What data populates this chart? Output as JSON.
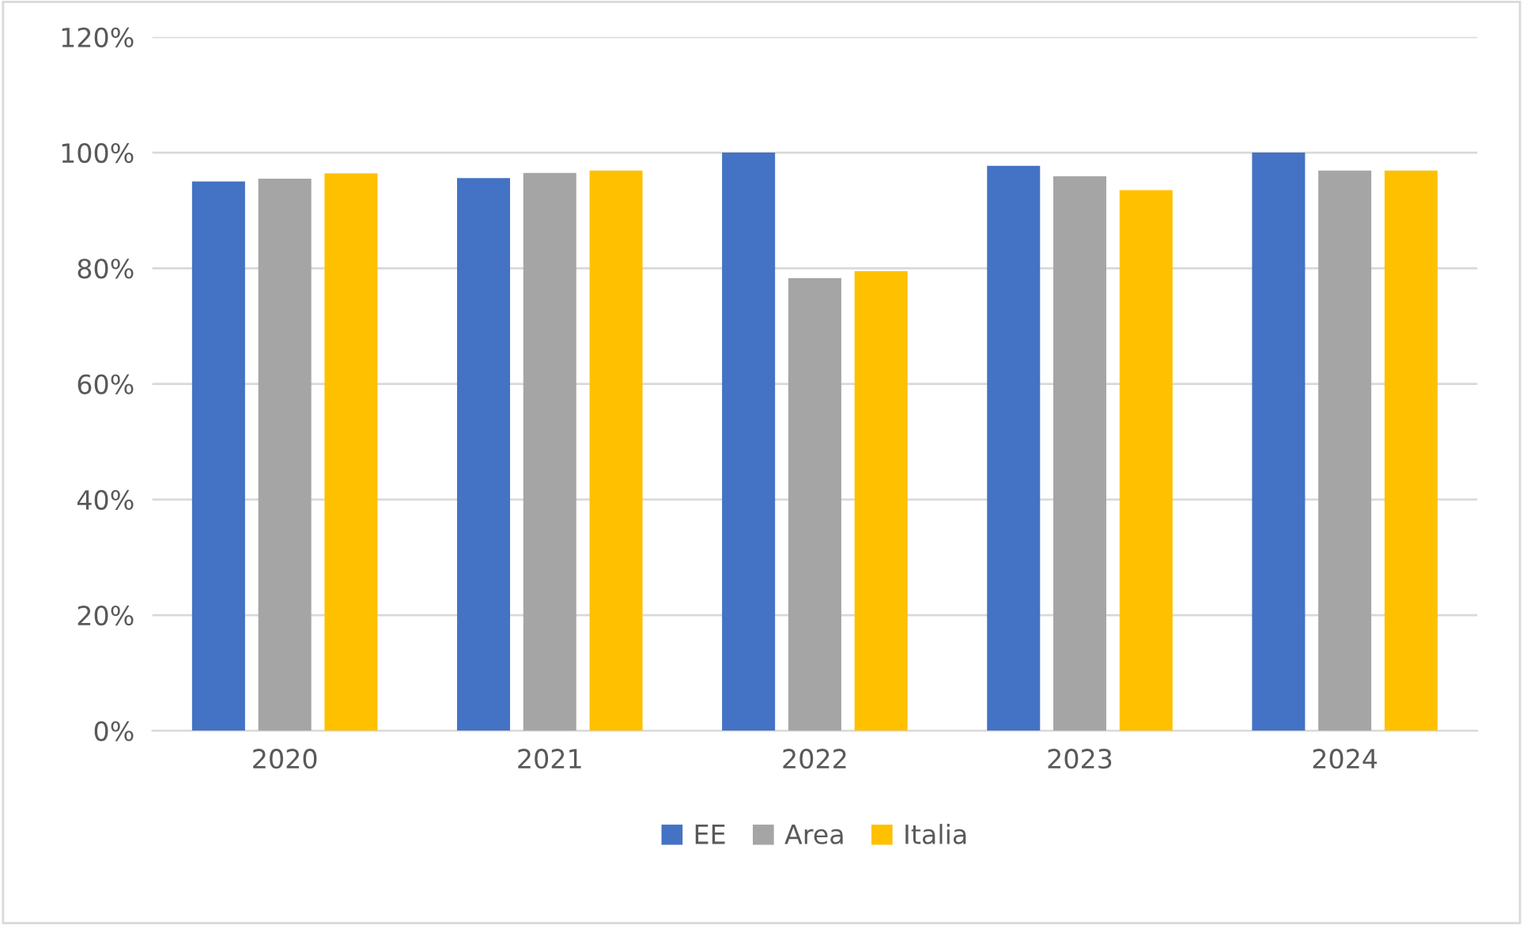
{
  "chart_data": {
    "type": "bar",
    "categories": [
      "2020",
      "2021",
      "2022",
      "2023",
      "2024"
    ],
    "series": [
      {
        "name": "EE",
        "color": "#4472c4",
        "values": [
          95,
          95.6,
          100,
          97.7,
          100
        ]
      },
      {
        "name": "Area",
        "color": "#a5a5a5",
        "values": [
          95.5,
          96.5,
          78.3,
          95.9,
          96.9
        ]
      },
      {
        "name": "Italia",
        "color": "#ffc000",
        "values": [
          96.4,
          96.9,
          79.5,
          93.5,
          96.9
        ]
      }
    ],
    "ylim": [
      0,
      120
    ],
    "yticks": [
      {
        "value": 0,
        "label": "0%"
      },
      {
        "value": 20,
        "label": "20%"
      },
      {
        "value": 40,
        "label": "40%"
      },
      {
        "value": 60,
        "label": "60%"
      },
      {
        "value": 80,
        "label": "80%"
      },
      {
        "value": 100,
        "label": "100%"
      },
      {
        "value": 120,
        "label": "120%"
      }
    ],
    "grid": "y",
    "legend": "bottom"
  }
}
